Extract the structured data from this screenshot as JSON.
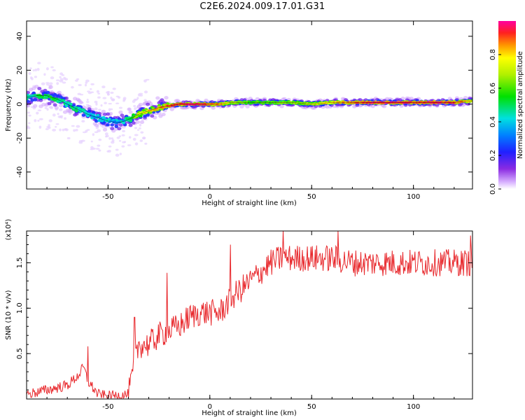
{
  "title": "C2E6.2024.009.17.01.G31",
  "chart_data": [
    {
      "type": "heatmap",
      "xlabel": "Height of straight line (km)",
      "ylabel": "Frequency (Hz)",
      "xlim": [
        -90,
        129
      ],
      "ylim": [
        -50,
        49
      ],
      "xticks": [
        -50,
        0,
        50,
        100
      ],
      "yticks": [
        -40,
        -20,
        0,
        20,
        40
      ],
      "trace": {
        "x": [
          -90,
          -85,
          -80,
          -75,
          -70,
          -65,
          -60,
          -55,
          -50,
          -45,
          -42,
          -38,
          -35,
          -30,
          -25,
          -20,
          -15,
          -10,
          -5,
          0,
          5,
          10,
          20,
          30,
          40,
          50,
          60,
          70,
          80,
          90,
          100,
          110,
          120,
          129
        ],
        "freq": [
          4,
          5,
          5,
          3,
          0,
          -3,
          -6,
          -8,
          -10,
          -11,
          -10,
          -8,
          -6,
          -4,
          -2,
          -1,
          0,
          0,
          0,
          0,
          0,
          1,
          1,
          1,
          1,
          0,
          1,
          1,
          1,
          1,
          1,
          1,
          1,
          2
        ],
        "amplitude": [
          0.4,
          0.5,
          0.55,
          0.5,
          0.45,
          0.45,
          0.4,
          0.35,
          0.35,
          0.3,
          0.35,
          0.6,
          0.75,
          0.8,
          0.85,
          0.9,
          0.9,
          0.95,
          0.95,
          0.9,
          0.85,
          0.7,
          0.6,
          0.6,
          0.65,
          0.7,
          0.8,
          0.85,
          0.95,
          0.95,
          0.9,
          0.95,
          0.9,
          0.75
        ]
      }
    },
    {
      "type": "colorbar",
      "label": "Normalized spectral amplitude",
      "ticks": [
        0.0,
        0.2,
        0.4,
        0.6,
        0.8
      ],
      "tick_labels": [
        "0.0",
        "0.2",
        "0.4",
        "0.6",
        "0.8"
      ],
      "range": [
        0,
        1
      ]
    },
    {
      "type": "line",
      "color": "#e8282c",
      "xlabel": "Height of straight line (km)",
      "ylabel": "SNR (10 * v/v)",
      "y_multiplier": "(x10⁴)",
      "xlim": [
        -90,
        129
      ],
      "ylim": [
        0,
        1.85
      ],
      "xticks": [
        -50,
        0,
        50,
        100
      ],
      "yticks": [
        0.5,
        1.0,
        1.5
      ],
      "ytick_labels": [
        "0.5",
        "1.0",
        "1.5"
      ],
      "x": [
        -90,
        -80,
        -70,
        -65,
        -62,
        -60,
        -55,
        -50,
        -45,
        -40,
        -37,
        -35,
        -30,
        -25,
        -20,
        -15,
        -10,
        -5,
        0,
        5,
        10,
        15,
        20,
        25,
        30,
        35,
        40,
        50,
        60,
        70,
        80,
        90,
        100,
        110,
        120,
        129
      ],
      "y": [
        0.05,
        0.1,
        0.15,
        0.25,
        0.35,
        0.2,
        0.05,
        0.03,
        0.04,
        0.05,
        0.35,
        0.6,
        0.6,
        0.7,
        0.75,
        0.8,
        0.9,
        0.95,
        0.95,
        0.95,
        1.1,
        1.2,
        1.3,
        1.4,
        1.5,
        1.55,
        1.55,
        1.55,
        1.55,
        1.5,
        1.5,
        1.5,
        1.5,
        1.5,
        1.5,
        1.5
      ],
      "spikes": [
        {
          "x": -60,
          "y": 0.58
        },
        {
          "x": -37,
          "y": 0.9
        },
        {
          "x": -21,
          "y": 1.39
        },
        {
          "x": 10,
          "y": 1.7
        },
        {
          "x": 36,
          "y": 1.85
        },
        {
          "x": 63,
          "y": 1.85
        },
        {
          "x": 128,
          "y": 1.8
        }
      ]
    }
  ]
}
